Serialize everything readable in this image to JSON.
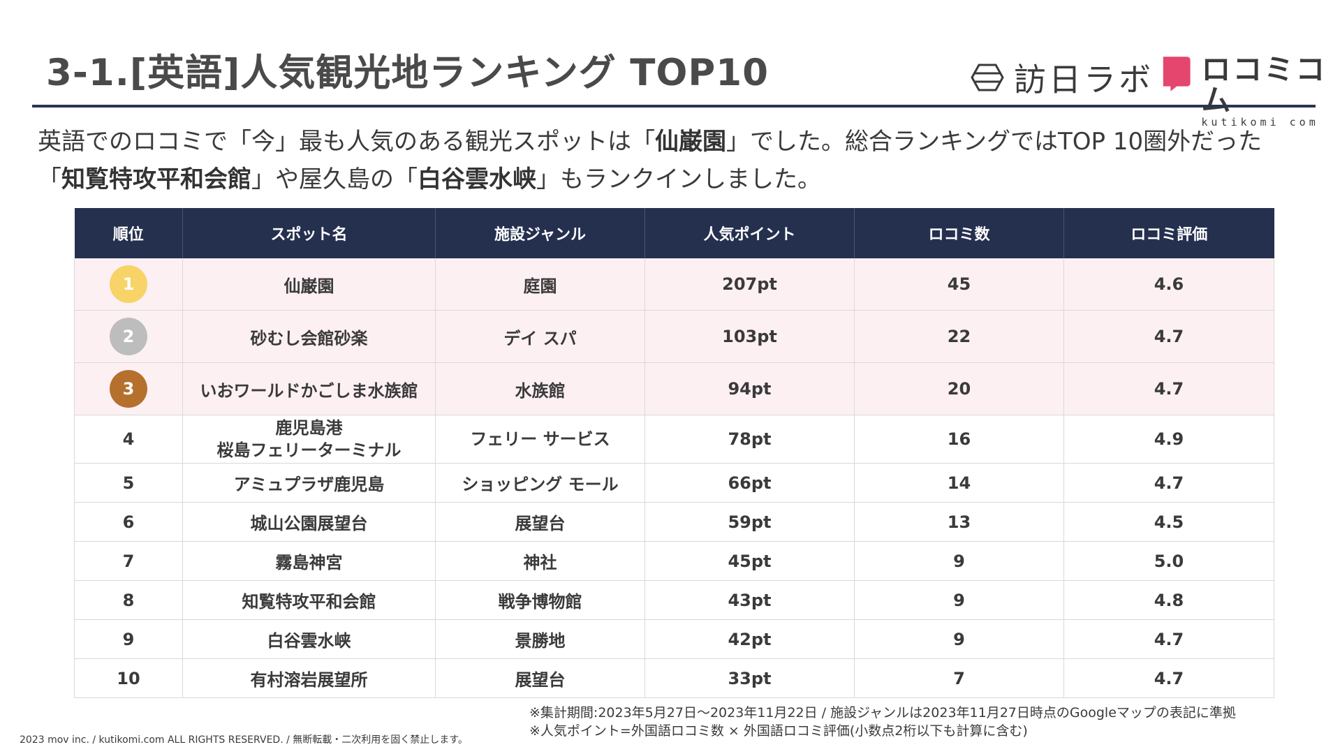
{
  "header": {
    "title": "3-1.[英語]人気観光地ランキング TOP10",
    "logo_houjin": "訪日ラボ",
    "logo_kutikomi": "ロコミコム",
    "logo_kutikomi_sub": "kutikomi com"
  },
  "summary": {
    "p1": "英語でのロコミで「今」最も人気のある観光スポットは「",
    "b1": "仙巌園",
    "p2": "」でした。総合ランキングではTOP 10圏外だった",
    "p3": "「",
    "b2": "知覧特攻平和会館",
    "p4": "」や屋久島の「",
    "b3": "白谷雲水峡",
    "p5": "」もランクインしました。"
  },
  "table": {
    "headers": [
      "順位",
      "スポット名",
      "施設ジャンル",
      "人気ポイント",
      "ロコミ数",
      "ロコミ評価"
    ],
    "rows": [
      {
        "rank": "1",
        "name": "仙巌園",
        "genre": "庭園",
        "points": "207pt",
        "count": "45",
        "rating": "4.6"
      },
      {
        "rank": "2",
        "name": "砂むし会館砂楽",
        "genre": "デイ スパ",
        "points": "103pt",
        "count": "22",
        "rating": "4.7"
      },
      {
        "rank": "3",
        "name": "いおワールドかごしま水族館",
        "genre": "水族館",
        "points": "94pt",
        "count": "20",
        "rating": "4.7"
      },
      {
        "rank": "4",
        "name_line1": "鹿児島港",
        "name_line2": "桜島フェリーターミナル",
        "genre": "フェリー サービス",
        "points": "78pt",
        "count": "16",
        "rating": "4.9"
      },
      {
        "rank": "5",
        "name": "アミュプラザ鹿児島",
        "genre": "ショッピング モール",
        "points": "66pt",
        "count": "14",
        "rating": "4.7"
      },
      {
        "rank": "6",
        "name": "城山公園展望台",
        "genre": "展望台",
        "points": "59pt",
        "count": "13",
        "rating": "4.5"
      },
      {
        "rank": "7",
        "name": "霧島神宮",
        "genre": "神社",
        "points": "45pt",
        "count": "9",
        "rating": "5.0"
      },
      {
        "rank": "8",
        "name": "知覧特攻平和会館",
        "genre": "戦争博物館",
        "points": "43pt",
        "count": "9",
        "rating": "4.8"
      },
      {
        "rank": "9",
        "name": "白谷雲水峡",
        "genre": "景勝地",
        "points": "42pt",
        "count": "9",
        "rating": "4.7"
      },
      {
        "rank": "10",
        "name": "有村溶岩展望所",
        "genre": "展望台",
        "points": "33pt",
        "count": "7",
        "rating": "4.7"
      }
    ]
  },
  "medal_colors": {
    "gold": "#f7d368",
    "silver": "#bdbdbd",
    "bronze": "#b5702e"
  },
  "colors": {
    "header_bg": "#25304f",
    "top_row_bg": "#fdf0f3",
    "logo_pink": "#e4466d"
  },
  "notes": {
    "line1": "※集計期間:2023年5月27日〜2023年11月22日 / 施設ジャンルは2023年11月27日時点のGoogleマップの表記に準拠",
    "line2": "※人気ポイント=外国語ロコミ数 × 外国語ロコミ評価(小数点2桁以下も計算に含む)"
  },
  "copyright": "2023 mov inc. / kutikomi.com ALL RIGHTS RESERVED. / 無断転載・二次利用を固く禁止します。"
}
